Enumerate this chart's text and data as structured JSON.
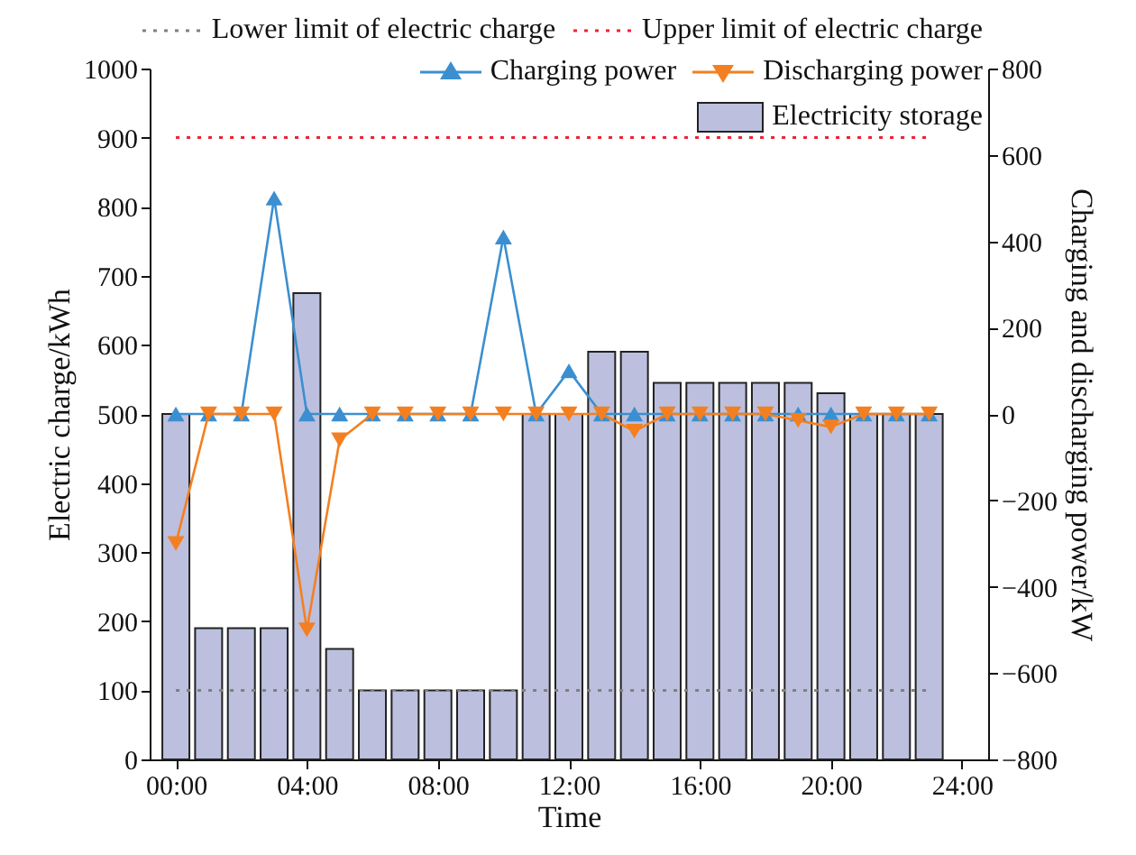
{
  "chart_data": {
    "type": "bar",
    "xlabel": "Time",
    "ylabel": "Electric charge/kWh",
    "y2label": "Charging and discharging power/kW",
    "x": [
      0,
      1,
      2,
      3,
      4,
      5,
      6,
      7,
      8,
      9,
      10,
      11,
      12,
      13,
      14,
      15,
      16,
      17,
      18,
      19,
      20,
      21,
      22,
      23
    ],
    "xlim": [
      -0.8,
      24.8
    ],
    "xticks": [
      {
        "value": 0,
        "label": "00:00"
      },
      {
        "value": 4,
        "label": "04:00"
      },
      {
        "value": 8,
        "label": "08:00"
      },
      {
        "value": 12,
        "label": "12:00"
      },
      {
        "value": 16,
        "label": "16:00"
      },
      {
        "value": 20,
        "label": "20:00"
      },
      {
        "value": 24,
        "label": "24:00"
      }
    ],
    "ylim": [
      0,
      1000
    ],
    "yticks": [
      0,
      100,
      200,
      300,
      400,
      500,
      600,
      700,
      800,
      900,
      1000
    ],
    "y2lim": [
      -800,
      800
    ],
    "y2ticks": [
      -800,
      -600,
      -400,
      -200,
      0,
      200,
      400,
      600,
      800
    ],
    "series": [
      {
        "name": "Electricity storage",
        "color": "#bcc0de",
        "values": [
          500,
          190,
          190,
          190,
          675,
          160,
          100,
          100,
          100,
          100,
          100,
          500,
          500,
          590,
          590,
          545,
          545,
          545,
          545,
          545,
          530,
          500,
          500,
          500
        ]
      },
      {
        "name": "Charging power",
        "type": "line",
        "axis": "y2",
        "color": "#3b8fd0",
        "marker": "triangle",
        "line_style": "solid",
        "values": [
          0,
          0,
          0,
          500,
          0,
          0,
          0,
          0,
          0,
          0,
          410,
          0,
          100,
          0,
          0,
          0,
          0,
          0,
          0,
          0,
          0,
          0,
          0,
          0
        ]
      },
      {
        "name": "Discharging power",
        "type": "line",
        "axis": "y2",
        "color": "#f47f20",
        "marker": "triangle-down",
        "line_style": "solid",
        "values": [
          -300,
          0,
          0,
          0,
          -500,
          -60,
          0,
          0,
          0,
          0,
          0,
          0,
          0,
          0,
          -40,
          0,
          0,
          0,
          0,
          -15,
          -30,
          0,
          0,
          0
        ]
      }
    ],
    "ref_lines": [
      {
        "axis": "y",
        "value": 100,
        "label": "Lower limit of electric charge",
        "color": "#808080",
        "line_style": "dotted"
      },
      {
        "axis": "y",
        "value": 900,
        "label": "Upper limit of electric charge",
        "color": "#ee2233",
        "line_style": "dotted"
      }
    ],
    "legend": "top right"
  }
}
